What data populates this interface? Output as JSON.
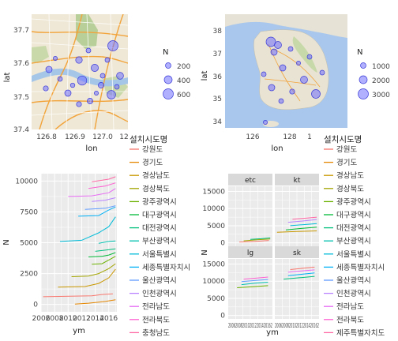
{
  "map_seoul": {
    "xlabel": "lon",
    "ylabel": "lat",
    "x_ticks": [
      "126.8",
      "126.9",
      "127.0",
      "12"
    ],
    "y_ticks": [
      "37.7",
      "37.6",
      "37.5",
      "37.4"
    ],
    "legend_title": "N",
    "legend_sizes": [
      "200",
      "400",
      "600"
    ]
  },
  "map_korea": {
    "xlabel": "lon",
    "ylabel": "lat",
    "x_ticks": [
      "126",
      "128",
      "1"
    ],
    "y_ticks": [
      "38",
      "37",
      "36",
      "35",
      "34"
    ],
    "legend_title": "N",
    "legend_sizes": [
      "1000",
      "2000",
      "3000"
    ]
  },
  "legend_province": {
    "title": "설치시도명",
    "items": [
      "강원도",
      "경기도",
      "경상남도",
      "경상북도",
      "광주광역시",
      "대구광역시",
      "대전광역시",
      "부산광역시",
      "서울특별시",
      "세종특별자치시",
      "울산광역시",
      "인천광역시",
      "전라남도",
      "전라북도",
      "충청남도"
    ]
  },
  "legend_province_right": {
    "title": "설치시도명",
    "items": [
      "강원도",
      "경기도",
      "경상남도",
      "경상북도",
      "광주광역시",
      "대구광역시",
      "대전광역시",
      "부산광역시",
      "서울특별시",
      "세종특별자치시",
      "울산광역시",
      "인천광역시",
      "전라남도",
      "전라북도",
      "제주특별자치도"
    ]
  },
  "colors": {
    "panel_bg": "#ebebeb",
    "strip_bg": "#d9d9d9",
    "grid": "#ffffff",
    "point_fill": "#7070ff",
    "point_stroke": "#3a3ad6",
    "provinces": [
      "#f8766d",
      "#e58700",
      "#c99800",
      "#a3a500",
      "#6bb100",
      "#00ba38",
      "#00bf7d",
      "#00c0af",
      "#00bcd8",
      "#00b0f6",
      "#619cff",
      "#b983ff",
      "#e76bf3",
      "#fd61d1",
      "#ff67a4"
    ]
  },
  "chart_data": [
    {
      "type": "line",
      "xlabel": "ym",
      "ylabel": "N",
      "x_ticks": [
        "2006",
        "2008",
        "2010",
        "2012",
        "2014",
        "2016"
      ],
      "xlim": [
        2006,
        2017.2
      ],
      "y_ticks": [
        "0",
        "2500",
        "5000",
        "7500",
        "10000"
      ],
      "ylim": [
        -600,
        10600
      ],
      "series": [
        {
          "values": [
            [
              2006.3,
              620
            ],
            [
              2013.5,
              700
            ],
            [
              2015.0,
              800
            ],
            [
              2016.6,
              850
            ]
          ]
        },
        {
          "values": [
            [
              2011.0,
              20
            ],
            [
              2013.0,
              100
            ],
            [
              2015.5,
              240
            ],
            [
              2017.0,
              380
            ]
          ]
        },
        {
          "values": [
            [
              2008.5,
              1400
            ],
            [
              2012.5,
              1450
            ],
            [
              2014.5,
              1700
            ],
            [
              2016.0,
              2150
            ],
            [
              2017.0,
              2850
            ]
          ]
        },
        {
          "values": [
            [
              2010.5,
              2250
            ],
            [
              2013.0,
              2300
            ],
            [
              2014.5,
              2500
            ],
            [
              2016.0,
              2900
            ],
            [
              2017.0,
              3300
            ]
          ]
        },
        {
          "values": [
            [
              2013.5,
              3250
            ],
            [
              2015.0,
              3300
            ],
            [
              2016.0,
              3600
            ],
            [
              2017.0,
              3900
            ]
          ]
        },
        {
          "values": [
            [
              2013.0,
              3850
            ],
            [
              2015.0,
              3900
            ],
            [
              2016.0,
              4000
            ],
            [
              2017.0,
              4200
            ]
          ]
        },
        {
          "values": [
            [
              2014.0,
              4300
            ],
            [
              2015.5,
              4400
            ],
            [
              2017.0,
              4500
            ]
          ]
        },
        {
          "values": [
            [
              2014.5,
              4950
            ],
            [
              2016.0,
              5100
            ],
            [
              2017.0,
              5150
            ]
          ]
        },
        {
          "values": [
            [
              2008.8,
              5100
            ],
            [
              2012.0,
              5200
            ],
            [
              2014.5,
              5800
            ],
            [
              2016.0,
              6300
            ],
            [
              2017.0,
              7100
            ]
          ]
        },
        {
          "values": [
            [
              2011.5,
              7150
            ],
            [
              2014.5,
              7200
            ],
            [
              2016.0,
              7650
            ],
            [
              2017.0,
              7900
            ]
          ]
        },
        {
          "values": [
            [
              2012.5,
              7700
            ],
            [
              2015.5,
              7800
            ],
            [
              2017.0,
              8000
            ]
          ]
        },
        {
          "values": [
            [
              2013.5,
              8350
            ],
            [
              2015.5,
              8450
            ],
            [
              2017.0,
              8650
            ]
          ]
        },
        {
          "values": [
            [
              2010.0,
              8750
            ],
            [
              2013.5,
              8800
            ],
            [
              2016.0,
              9050
            ],
            [
              2017.0,
              9400
            ]
          ]
        },
        {
          "values": [
            [
              2013.0,
              9400
            ],
            [
              2015.5,
              9600
            ],
            [
              2017.0,
              9850
            ]
          ]
        },
        {
          "values": [
            [
              2013.5,
              9950
            ],
            [
              2016.0,
              10150
            ],
            [
              2017.0,
              10350
            ]
          ]
        }
      ]
    },
    {
      "type": "line",
      "xlabel": "ym",
      "ylabel": "N",
      "facets": [
        "etc",
        "kt",
        "lg",
        "sk"
      ],
      "x_tick_text": "2006200820102012201420162",
      "y_ticks": [
        "0",
        "5000",
        "10000",
        "15000"
      ],
      "ylim": [
        -1000,
        16500
      ],
      "facet_series": {
        "etc": [
          {
            "values": [
              [
                0.25,
                250
              ],
              [
                0.6,
                400
              ],
              [
                0.92,
                700
              ]
            ]
          },
          {
            "values": [
              [
                0.35,
                600
              ],
              [
                0.65,
                900
              ],
              [
                0.95,
                1150
              ]
            ]
          },
          {
            "values": [
              [
                0.5,
                1000
              ],
              [
                0.75,
                1200
              ],
              [
                0.95,
                1450
              ]
            ]
          }
        ],
        "kt": [
          {
            "values": [
              [
                0.05,
                3100
              ],
              [
                0.5,
                3300
              ],
              [
                0.95,
                3500
              ]
            ]
          },
          {
            "values": [
              [
                0.25,
                3800
              ],
              [
                0.6,
                4200
              ],
              [
                0.95,
                4600
              ]
            ]
          },
          {
            "values": [
              [
                0.35,
                5000
              ],
              [
                0.65,
                5300
              ],
              [
                0.95,
                5600
              ]
            ]
          },
          {
            "values": [
              [
                0.3,
                6000
              ],
              [
                0.65,
                6400
              ],
              [
                0.95,
                6800
              ]
            ]
          },
          {
            "values": [
              [
                0.4,
                6900
              ],
              [
                0.7,
                7200
              ],
              [
                0.95,
                7500
              ]
            ]
          }
        ],
        "lg": [
          {
            "values": [
              [
                0.2,
                8100
              ],
              [
                0.55,
                8400
              ],
              [
                0.9,
                8700
              ]
            ]
          },
          {
            "values": [
              [
                0.3,
                9000
              ],
              [
                0.6,
                9400
              ],
              [
                0.9,
                9700
              ]
            ]
          },
          {
            "values": [
              [
                0.3,
                9900
              ],
              [
                0.6,
                10200
              ],
              [
                0.9,
                10500
              ]
            ]
          },
          {
            "values": [
              [
                0.35,
                10600
              ],
              [
                0.65,
                10900
              ],
              [
                0.9,
                11200
              ]
            ]
          }
        ],
        "sk": [
          {
            "values": [
              [
                0.2,
                10600
              ],
              [
                0.55,
                11000
              ],
              [
                0.9,
                11400
              ]
            ]
          },
          {
            "values": [
              [
                0.3,
                11600
              ],
              [
                0.6,
                12000
              ],
              [
                0.9,
                12400
              ]
            ]
          },
          {
            "values": [
              [
                0.3,
                12600
              ],
              [
                0.6,
                13000
              ],
              [
                0.9,
                13300
              ]
            ]
          },
          {
            "values": [
              [
                0.35,
                13400
              ],
              [
                0.65,
                13800
              ],
              [
                0.9,
                14100
              ]
            ]
          }
        ]
      }
    }
  ]
}
